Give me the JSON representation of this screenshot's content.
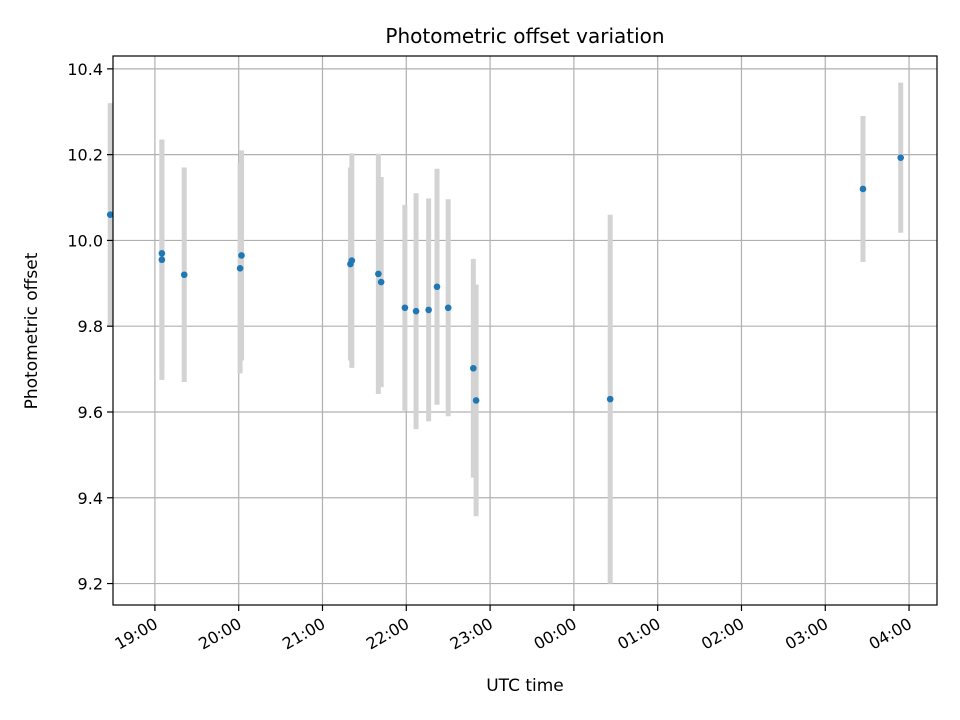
{
  "chart_data": {
    "type": "scatter",
    "title": "Photometric offset variation",
    "xlabel": "UTC time",
    "ylabel": "Photometric offset",
    "x_unit": "UTC date-time",
    "xlim": [
      "2000-01-01 18:30",
      "2000-01-02 04:20"
    ],
    "ylim": [
      9.15,
      10.43
    ],
    "grid": true,
    "x_ticks": [
      {
        "t": "2000-01-01 19:00",
        "label": "19:00"
      },
      {
        "t": "2000-01-01 20:00",
        "label": "20:00"
      },
      {
        "t": "2000-01-01 21:00",
        "label": "21:00"
      },
      {
        "t": "2000-01-01 22:00",
        "label": "22:00"
      },
      {
        "t": "2000-01-01 23:00",
        "label": "23:00"
      },
      {
        "t": "2000-01-02 00:00",
        "label": "00:00"
      },
      {
        "t": "2000-01-02 01:00",
        "label": "01:00"
      },
      {
        "t": "2000-01-02 02:00",
        "label": "02:00"
      },
      {
        "t": "2000-01-02 03:00",
        "label": "03:00"
      },
      {
        "t": "2000-01-02 04:00",
        "label": "04:00"
      }
    ],
    "y_ticks": [
      {
        "v": 9.2,
        "label": "9.2"
      },
      {
        "v": 9.4,
        "label": "9.4"
      },
      {
        "v": 9.6,
        "label": "9.6"
      },
      {
        "v": 9.8,
        "label": "9.8"
      },
      {
        "v": 10.0,
        "label": "10.0"
      },
      {
        "v": 10.2,
        "label": "10.2"
      },
      {
        "v": 10.4,
        "label": "10.4"
      }
    ],
    "colors": {
      "marker": "#1f77b4",
      "errorbar": "#d3d3d3",
      "grid": "#b0b0b0"
    },
    "points": [
      {
        "t": "2000-01-01 18:28",
        "y": 10.06,
        "err": 0.26
      },
      {
        "t": "2000-01-01 19:05",
        "y": 9.97,
        "err": 0.265
      },
      {
        "t": "2000-01-01 19:05",
        "y": 9.955,
        "err": 0.28
      },
      {
        "t": "2000-01-01 19:21",
        "y": 9.92,
        "err": 0.25
      },
      {
        "t": "2000-01-01 20:01",
        "y": 9.935,
        "err": 0.245
      },
      {
        "t": "2000-01-01 20:02",
        "y": 9.965,
        "err": 0.245
      },
      {
        "t": "2000-01-01 21:20",
        "y": 9.945,
        "err": 0.225
      },
      {
        "t": "2000-01-01 21:21",
        "y": 9.953,
        "err": 0.25
      },
      {
        "t": "2000-01-01 21:40",
        "y": 9.922,
        "err": 0.28
      },
      {
        "t": "2000-01-01 21:42",
        "y": 9.903,
        "err": 0.245
      },
      {
        "t": "2000-01-01 21:59",
        "y": 9.843,
        "err": 0.24
      },
      {
        "t": "2000-01-01 22:07",
        "y": 9.835,
        "err": 0.275
      },
      {
        "t": "2000-01-01 22:16",
        "y": 9.838,
        "err": 0.26
      },
      {
        "t": "2000-01-01 22:22",
        "y": 9.892,
        "err": 0.275
      },
      {
        "t": "2000-01-01 22:30",
        "y": 9.843,
        "err": 0.253
      },
      {
        "t": "2000-01-01 22:48",
        "y": 9.702,
        "err": 0.255
      },
      {
        "t": "2000-01-01 22:50",
        "y": 9.627,
        "err": 0.27
      },
      {
        "t": "2000-01-02 00:26",
        "y": 9.63,
        "err": 0.43
      },
      {
        "t": "2000-01-02 03:27",
        "y": 10.12,
        "err": 0.17
      },
      {
        "t": "2000-01-02 03:54",
        "y": 10.193,
        "err": 0.175
      }
    ]
  }
}
